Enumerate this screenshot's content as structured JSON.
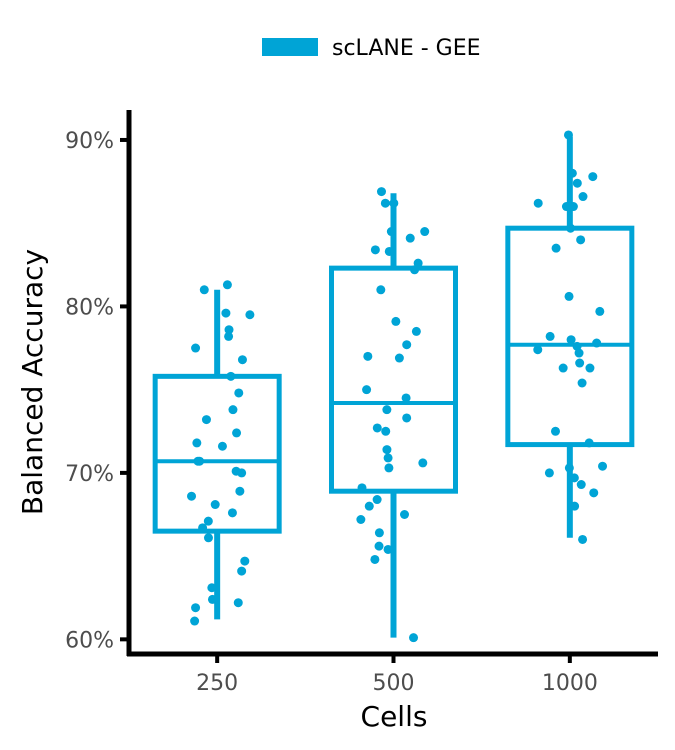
{
  "chart_data": {
    "type": "boxplot",
    "title": "",
    "xlabel": "Cells",
    "ylabel": "Balanced Accuracy",
    "ylim": [
      0.593,
      0.918
    ],
    "yticks": [
      0.6,
      0.7,
      0.8,
      0.9
    ],
    "ytick_labels": [
      "60%",
      "70%",
      "80%",
      "90%"
    ],
    "categories": [
      "250",
      "500",
      "1000"
    ],
    "legend": {
      "position": "top",
      "entries": [
        "scLANE - GEE"
      ]
    },
    "grid": false,
    "colors": {
      "series": "#00a4d6",
      "axis": "#000000",
      "tick_text": "#4d4d4d"
    },
    "series": [
      {
        "name": "scLANE - GEE",
        "boxes": [
          {
            "category": "250",
            "whisker_low": 0.612,
            "q1": 0.665,
            "median": 0.707,
            "q3": 0.758,
            "whisker_high": 0.81
          },
          {
            "category": "500",
            "whisker_low": 0.601,
            "q1": 0.689,
            "median": 0.742,
            "q3": 0.823,
            "whisker_high": 0.868
          },
          {
            "category": "1000",
            "whisker_low": 0.661,
            "q1": 0.717,
            "median": 0.777,
            "q3": 0.847,
            "whisker_high": 0.902
          }
        ],
        "points": [
          {
            "category": "250",
            "values": [
              0.813,
              0.81,
              0.796,
              0.795,
              0.786,
              0.782,
              0.775,
              0.768,
              0.758,
              0.748,
              0.738,
              0.732,
              0.724,
              0.718,
              0.716,
              0.707,
              0.707,
              0.701,
              0.7,
              0.689,
              0.686,
              0.681,
              0.676,
              0.671,
              0.667,
              0.661,
              0.647,
              0.641,
              0.631,
              0.624,
              0.622,
              0.619,
              0.611
            ]
          },
          {
            "category": "500",
            "values": [
              0.869,
              0.862,
              0.862,
              0.845,
              0.845,
              0.841,
              0.834,
              0.833,
              0.826,
              0.822,
              0.81,
              0.791,
              0.785,
              0.777,
              0.77,
              0.769,
              0.75,
              0.745,
              0.738,
              0.733,
              0.727,
              0.725,
              0.714,
              0.709,
              0.706,
              0.703,
              0.691,
              0.684,
              0.68,
              0.675,
              0.672,
              0.664,
              0.656,
              0.654,
              0.648,
              0.601
            ]
          },
          {
            "category": "1000",
            "values": [
              0.903,
              0.88,
              0.878,
              0.874,
              0.866,
              0.862,
              0.86,
              0.86,
              0.847,
              0.84,
              0.835,
              0.806,
              0.797,
              0.782,
              0.78,
              0.778,
              0.776,
              0.774,
              0.772,
              0.766,
              0.763,
              0.763,
              0.754,
              0.725,
              0.718,
              0.704,
              0.703,
              0.7,
              0.697,
              0.693,
              0.688,
              0.68,
              0.66
            ]
          }
        ]
      }
    ]
  }
}
